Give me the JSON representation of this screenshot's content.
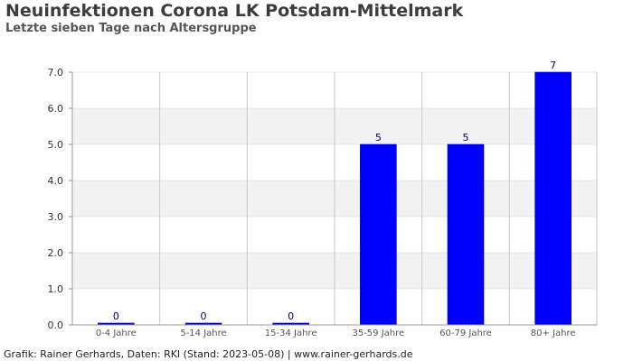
{
  "title": "Neuinfektionen Corona LK Potsdam-Mittelmark",
  "subtitle": "Letzte sieben Tage nach Altersgruppe",
  "footer": "Grafik: Rainer Gerhards, Daten: RKI (Stand: 2023-05-08) | www.rainer-gerhards.de",
  "colors": {
    "bar": "#0000ff",
    "bar_edge": "#000080",
    "label": "#000066",
    "band": "#f2f2f2",
    "grid": "#c8c8c8"
  },
  "chart_data": {
    "type": "bar",
    "title": "Neuinfektionen Corona LK Potsdam-Mittelmark",
    "subtitle": "Letzte sieben Tage nach Altersgruppe",
    "categories": [
      "0-4 Jahre",
      "5-14 Jahre",
      "15-34 Jahre",
      "35-59 Jahre",
      "60-79 Jahre",
      "80+ Jahre"
    ],
    "values": [
      0,
      0,
      0,
      5,
      5,
      7
    ],
    "data_labels": [
      "0",
      "0",
      "0",
      "5",
      "5",
      "7"
    ],
    "ylim": [
      0,
      7
    ],
    "yticks": [
      "0.0",
      "1.0",
      "2.0",
      "3.0",
      "4.0",
      "5.0",
      "6.0",
      "7.0"
    ],
    "xlabel": "",
    "ylabel": "",
    "grid": true,
    "legend": "none"
  }
}
